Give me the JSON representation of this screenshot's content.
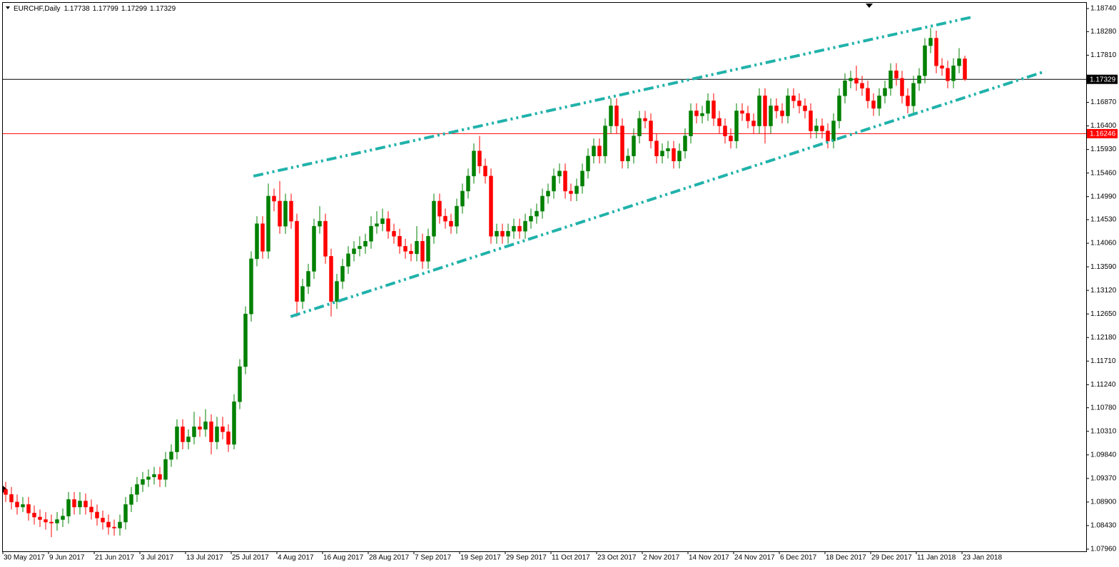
{
  "chart_data": {
    "type": "candlestick",
    "title": "EURCHF,Daily",
    "header_values": [
      1.17738,
      1.17799,
      1.17299,
      1.17329
    ],
    "categories": [
      "30 May 2017",
      null,
      null,
      null,
      null,
      null,
      null,
      null,
      "9 Jun 2017",
      null,
      null,
      null,
      null,
      null,
      null,
      null,
      "21 Jun 2017",
      null,
      null,
      null,
      null,
      null,
      null,
      null,
      "3 Jul 2017",
      null,
      null,
      null,
      null,
      null,
      null,
      null,
      "13 Jul 2017",
      null,
      null,
      null,
      null,
      null,
      null,
      null,
      "25 Jul 2017",
      null,
      null,
      null,
      null,
      null,
      null,
      null,
      "4 Aug 2017",
      null,
      null,
      null,
      null,
      null,
      null,
      null,
      "16 Aug 2017",
      null,
      null,
      null,
      null,
      null,
      null,
      null,
      "28 Aug 2017",
      null,
      null,
      null,
      null,
      null,
      null,
      null,
      "7 Sep 2017",
      null,
      null,
      null,
      null,
      null,
      null,
      null,
      "19 Sep 2017",
      null,
      null,
      null,
      null,
      null,
      null,
      null,
      "29 Sep 2017",
      null,
      null,
      null,
      null,
      null,
      null,
      null,
      "11 Oct 2017",
      null,
      null,
      null,
      null,
      null,
      null,
      null,
      "23 Oct 2017",
      null,
      null,
      null,
      null,
      null,
      null,
      null,
      "2 Nov 2017",
      null,
      null,
      null,
      null,
      null,
      null,
      null,
      "14 Nov 2017",
      null,
      null,
      null,
      null,
      null,
      null,
      null,
      "24 Nov 2017",
      null,
      null,
      null,
      null,
      null,
      null,
      null,
      "6 Dec 2017",
      null,
      null,
      null,
      null,
      null,
      null,
      null,
      "18 Dec 2017",
      null,
      null,
      null,
      null,
      null,
      null,
      null,
      "29 Dec 2017",
      null,
      null,
      null,
      null,
      null,
      null,
      null,
      "11 Jan 2018",
      null,
      null,
      null,
      null,
      null,
      null,
      null,
      "23 Jan 2018"
    ],
    "open": [
      1.0915,
      1.0905,
      1.089,
      1.088,
      1.0885,
      1.0868,
      1.086,
      1.0855,
      1.085,
      1.0848,
      1.0855,
      1.0862,
      1.0895,
      1.088,
      1.0892,
      1.088,
      1.087,
      1.0858,
      1.085,
      1.084,
      1.0838,
      1.085,
      1.0885,
      1.0905,
      1.0925,
      1.0935,
      1.094,
      1.0945,
      1.0935,
      1.0975,
      1.099,
      1.104,
      1.101,
      1.102,
      1.104,
      1.1035,
      1.105,
      1.101,
      1.104,
      1.103,
      1.1005,
      1.109,
      1.116,
      1.1265,
      1.1375,
      1.1445,
      1.139,
      1.15,
      1.149,
      1.144,
      1.149,
      1.145,
      1.129,
      1.132,
      1.135,
      1.144,
      1.145,
      1.138,
      1.129,
      1.133,
      1.136,
      1.1385,
      1.1395,
      1.14,
      1.141,
      1.144,
      1.1445,
      1.1455,
      1.143,
      1.142,
      1.14,
      1.139,
      1.1385,
      1.141,
      1.137,
      1.142,
      1.149,
      1.146,
      1.145,
      1.144,
      1.148,
      1.151,
      1.154,
      1.159,
      1.156,
      1.154,
      1.142,
      1.143,
      1.142,
      1.143,
      1.144,
      1.143,
      1.145,
      1.146,
      1.147,
      1.15,
      1.151,
      1.154,
      1.155,
      1.151,
      1.1505,
      1.152,
      1.155,
      1.158,
      1.16,
      1.158,
      1.164,
      1.168,
      1.164,
      1.157,
      1.158,
      1.162,
      1.1655,
      1.165,
      1.161,
      1.158,
      1.159,
      1.1595,
      1.157,
      1.159,
      1.162,
      1.167,
      1.166,
      1.1665,
      1.169,
      1.1655,
      1.164,
      1.162,
      1.161,
      1.167,
      1.1665,
      1.165,
      1.164,
      1.17,
      1.164,
      1.168,
      1.167,
      1.166,
      1.17,
      1.169,
      1.168,
      1.167,
      1.163,
      1.164,
      1.163,
      1.161,
      1.165,
      1.17,
      1.173,
      1.1735,
      1.1725,
      1.1715,
      1.169,
      1.1675,
      1.17,
      1.1715,
      1.175,
      1.1735,
      1.17,
      1.168,
      1.1725,
      1.174,
      1.18,
      1.1815,
      1.176,
      1.1755,
      1.173,
      1.176,
      1.17738
    ],
    "high": [
      1.093,
      1.092,
      1.0905,
      1.09,
      1.09,
      1.0883,
      1.0875,
      1.087,
      1.0865,
      1.087,
      1.0877,
      1.091,
      1.091,
      1.091,
      1.0907,
      1.0895,
      1.0885,
      1.0873,
      1.0865,
      1.0855,
      1.0865,
      1.09,
      1.092,
      1.094,
      1.095,
      1.0955,
      1.096,
      1.096,
      1.099,
      1.1005,
      1.1055,
      1.1055,
      1.1035,
      1.107,
      1.106,
      1.1075,
      1.1065,
      1.106,
      1.106,
      1.1045,
      1.1105,
      1.1175,
      1.128,
      1.139,
      1.146,
      1.146,
      1.1525,
      1.1515,
      1.153,
      1.1505,
      1.1505,
      1.1465,
      1.1335,
      1.1365,
      1.1455,
      1.148,
      1.1465,
      1.1395,
      1.1345,
      1.1375,
      1.14,
      1.141,
      1.142,
      1.1425,
      1.146,
      1.147,
      1.1475,
      1.147,
      1.1445,
      1.1435,
      1.1415,
      1.1405,
      1.144,
      1.1425,
      1.1435,
      1.1505,
      1.1505,
      1.1475,
      1.1465,
      1.1495,
      1.1525,
      1.1555,
      1.1605,
      1.162,
      1.1575,
      1.1555,
      1.1445,
      1.1445,
      1.1445,
      1.1455,
      1.1455,
      1.1465,
      1.1475,
      1.1485,
      1.1515,
      1.1525,
      1.1555,
      1.1565,
      1.1565,
      1.1525,
      1.1535,
      1.1565,
      1.1595,
      1.1615,
      1.1615,
      1.1655,
      1.1695,
      1.1695,
      1.1655,
      1.1595,
      1.1635,
      1.167,
      1.167,
      1.1665,
      1.1625,
      1.1605,
      1.161,
      1.161,
      1.1605,
      1.1635,
      1.1685,
      1.1685,
      1.168,
      1.1705,
      1.1705,
      1.167,
      1.1655,
      1.1635,
      1.1685,
      1.1685,
      1.168,
      1.1665,
      1.1715,
      1.1715,
      1.1695,
      1.1695,
      1.1685,
      1.1715,
      1.1715,
      1.1705,
      1.1695,
      1.1685,
      1.1655,
      1.1655,
      1.1645,
      1.1665,
      1.1715,
      1.1745,
      1.175,
      1.176,
      1.174,
      1.173,
      1.1705,
      1.1715,
      1.173,
      1.1765,
      1.1765,
      1.175,
      1.1715,
      1.174,
      1.1755,
      1.1815,
      1.1835,
      1.183,
      1.1775,
      1.177,
      1.1775,
      1.1795,
      1.17799
    ],
    "low": [
      1.089,
      1.0875,
      1.0865,
      1.087,
      1.0853,
      1.0845,
      1.084,
      1.0835,
      1.082,
      1.0833,
      1.084,
      1.0847,
      1.0865,
      1.0865,
      1.0865,
      1.0855,
      1.0843,
      1.0835,
      1.0825,
      1.0823,
      1.0823,
      1.0835,
      1.087,
      1.089,
      1.091,
      1.092,
      1.0925,
      1.092,
      1.092,
      1.096,
      1.0975,
      1.0995,
      1.0995,
      1.1005,
      1.102,
      1.102,
      1.0985,
      1.0995,
      1.1015,
      1.099,
      1.0995,
      1.1075,
      1.1145,
      1.125,
      1.136,
      1.1375,
      1.1375,
      1.147,
      1.1425,
      1.1425,
      1.1435,
      1.126,
      1.1275,
      1.1305,
      1.1335,
      1.1425,
      1.1365,
      1.126,
      1.1275,
      1.1315,
      1.1345,
      1.137,
      1.138,
      1.1385,
      1.1395,
      1.1425,
      1.143,
      1.1415,
      1.1405,
      1.1385,
      1.1375,
      1.137,
      1.137,
      1.1355,
      1.1355,
      1.1405,
      1.1445,
      1.1435,
      1.1425,
      1.1425,
      1.1465,
      1.1495,
      1.1525,
      1.1545,
      1.1525,
      1.1405,
      1.1405,
      1.1405,
      1.1405,
      1.1415,
      1.1415,
      1.1415,
      1.1435,
      1.1445,
      1.1455,
      1.1485,
      1.1495,
      1.1525,
      1.1495,
      1.149,
      1.149,
      1.1505,
      1.1535,
      1.1565,
      1.1565,
      1.1565,
      1.1625,
      1.1625,
      1.1555,
      1.1555,
      1.1565,
      1.1605,
      1.1635,
      1.1595,
      1.1565,
      1.1565,
      1.1575,
      1.1555,
      1.1555,
      1.1575,
      1.1605,
      1.1645,
      1.1645,
      1.165,
      1.164,
      1.1625,
      1.1605,
      1.1595,
      1.1595,
      1.165,
      1.1635,
      1.1625,
      1.1625,
      1.1605,
      1.1625,
      1.1655,
      1.1645,
      1.1645,
      1.1675,
      1.1665,
      1.1655,
      1.1615,
      1.1615,
      1.1615,
      1.1595,
      1.1595,
      1.1635,
      1.1685,
      1.1715,
      1.171,
      1.17,
      1.1675,
      1.166,
      1.166,
      1.1685,
      1.17,
      1.172,
      1.1685,
      1.1665,
      1.1665,
      1.171,
      1.1725,
      1.1785,
      1.1745,
      1.174,
      1.1715,
      1.1715,
      1.1745,
      1.17299
    ],
    "close": [
      1.0905,
      1.089,
      1.088,
      1.0885,
      1.0868,
      1.086,
      1.0855,
      1.085,
      1.0848,
      1.0855,
      1.0862,
      1.0895,
      1.088,
      1.0892,
      1.088,
      1.087,
      1.0858,
      1.085,
      1.084,
      1.0838,
      1.085,
      1.0885,
      1.0905,
      1.0925,
      1.0935,
      1.094,
      1.0945,
      1.0935,
      1.0975,
      1.099,
      1.104,
      1.101,
      1.102,
      1.104,
      1.1035,
      1.105,
      1.101,
      1.104,
      1.103,
      1.1005,
      1.109,
      1.116,
      1.1265,
      1.1375,
      1.1445,
      1.139,
      1.15,
      1.149,
      1.144,
      1.149,
      1.145,
      1.129,
      1.132,
      1.135,
      1.144,
      1.145,
      1.138,
      1.129,
      1.133,
      1.136,
      1.1385,
      1.1395,
      1.14,
      1.141,
      1.144,
      1.1445,
      1.1455,
      1.143,
      1.142,
      1.14,
      1.139,
      1.1385,
      1.141,
      1.137,
      1.142,
      1.149,
      1.146,
      1.145,
      1.144,
      1.148,
      1.151,
      1.154,
      1.159,
      1.156,
      1.154,
      1.142,
      1.143,
      1.142,
      1.143,
      1.144,
      1.143,
      1.145,
      1.146,
      1.147,
      1.15,
      1.151,
      1.154,
      1.155,
      1.151,
      1.1505,
      1.152,
      1.155,
      1.158,
      1.16,
      1.158,
      1.164,
      1.168,
      1.164,
      1.157,
      1.158,
      1.162,
      1.1655,
      1.165,
      1.161,
      1.158,
      1.159,
      1.1595,
      1.157,
      1.159,
      1.162,
      1.167,
      1.166,
      1.1665,
      1.169,
      1.1655,
      1.164,
      1.162,
      1.161,
      1.167,
      1.1665,
      1.165,
      1.164,
      1.17,
      1.164,
      1.168,
      1.167,
      1.166,
      1.17,
      1.169,
      1.168,
      1.167,
      1.163,
      1.164,
      1.163,
      1.161,
      1.165,
      1.17,
      1.173,
      1.1735,
      1.1725,
      1.1715,
      1.169,
      1.1675,
      1.17,
      1.1715,
      1.175,
      1.1735,
      1.17,
      1.168,
      1.1725,
      1.174,
      1.18,
      1.1815,
      1.176,
      1.1755,
      1.173,
      1.176,
      1.1774,
      1.17329
    ],
    "up_color": "#008000",
    "down_color": "#ff0000",
    "ylim": [
      1.07917,
      1.18854
    ],
    "yticks": [
      {
        "value": 1.1874,
        "label": "1.18740"
      },
      {
        "value": 1.1828,
        "label": "1.18280"
      },
      {
        "value": 1.1781,
        "label": "1.17810"
      },
      {
        "value": 1.1687,
        "label": "1.16870"
      },
      {
        "value": 1.164,
        "label": "1.16400"
      },
      {
        "value": 1.1593,
        "label": "1.15930"
      },
      {
        "value": 1.1546,
        "label": "1.15460"
      },
      {
        "value": 1.1499,
        "label": "1.14990"
      },
      {
        "value": 1.1453,
        "label": "1.14530"
      },
      {
        "value": 1.1406,
        "label": "1.14060"
      },
      {
        "value": 1.1359,
        "label": "1.13590"
      },
      {
        "value": 1.1312,
        "label": "1.13120"
      },
      {
        "value": 1.1265,
        "label": "1.12650"
      },
      {
        "value": 1.1218,
        "label": "1.12180"
      },
      {
        "value": 1.1171,
        "label": "1.11710"
      },
      {
        "value": 1.1124,
        "label": "1.11240"
      },
      {
        "value": 1.1078,
        "label": "1.10780"
      },
      {
        "value": 1.1031,
        "label": "1.10310"
      },
      {
        "value": 1.0984,
        "label": "1.09840"
      },
      {
        "value": 1.0937,
        "label": "1.09370"
      },
      {
        "value": 1.089,
        "label": "1.08900"
      },
      {
        "value": 1.0843,
        "label": "1.08430"
      },
      {
        "value": 1.0796,
        "label": "1.07960"
      }
    ],
    "hlines": [
      {
        "value": 1.17329,
        "color": "#000000"
      },
      {
        "value": 1.16246,
        "color": "#ff0000"
      }
    ],
    "trendlines": [
      {
        "color": "#20b2aa",
        "x": [
          43.4,
          169.25
        ],
        "y": [
          1.15399,
          1.1857
        ]
      },
      {
        "color": "#20b2aa",
        "x": [
          49.9,
          182.1
        ],
        "y": [
          1.12597,
          1.17489
        ]
      }
    ]
  }
}
